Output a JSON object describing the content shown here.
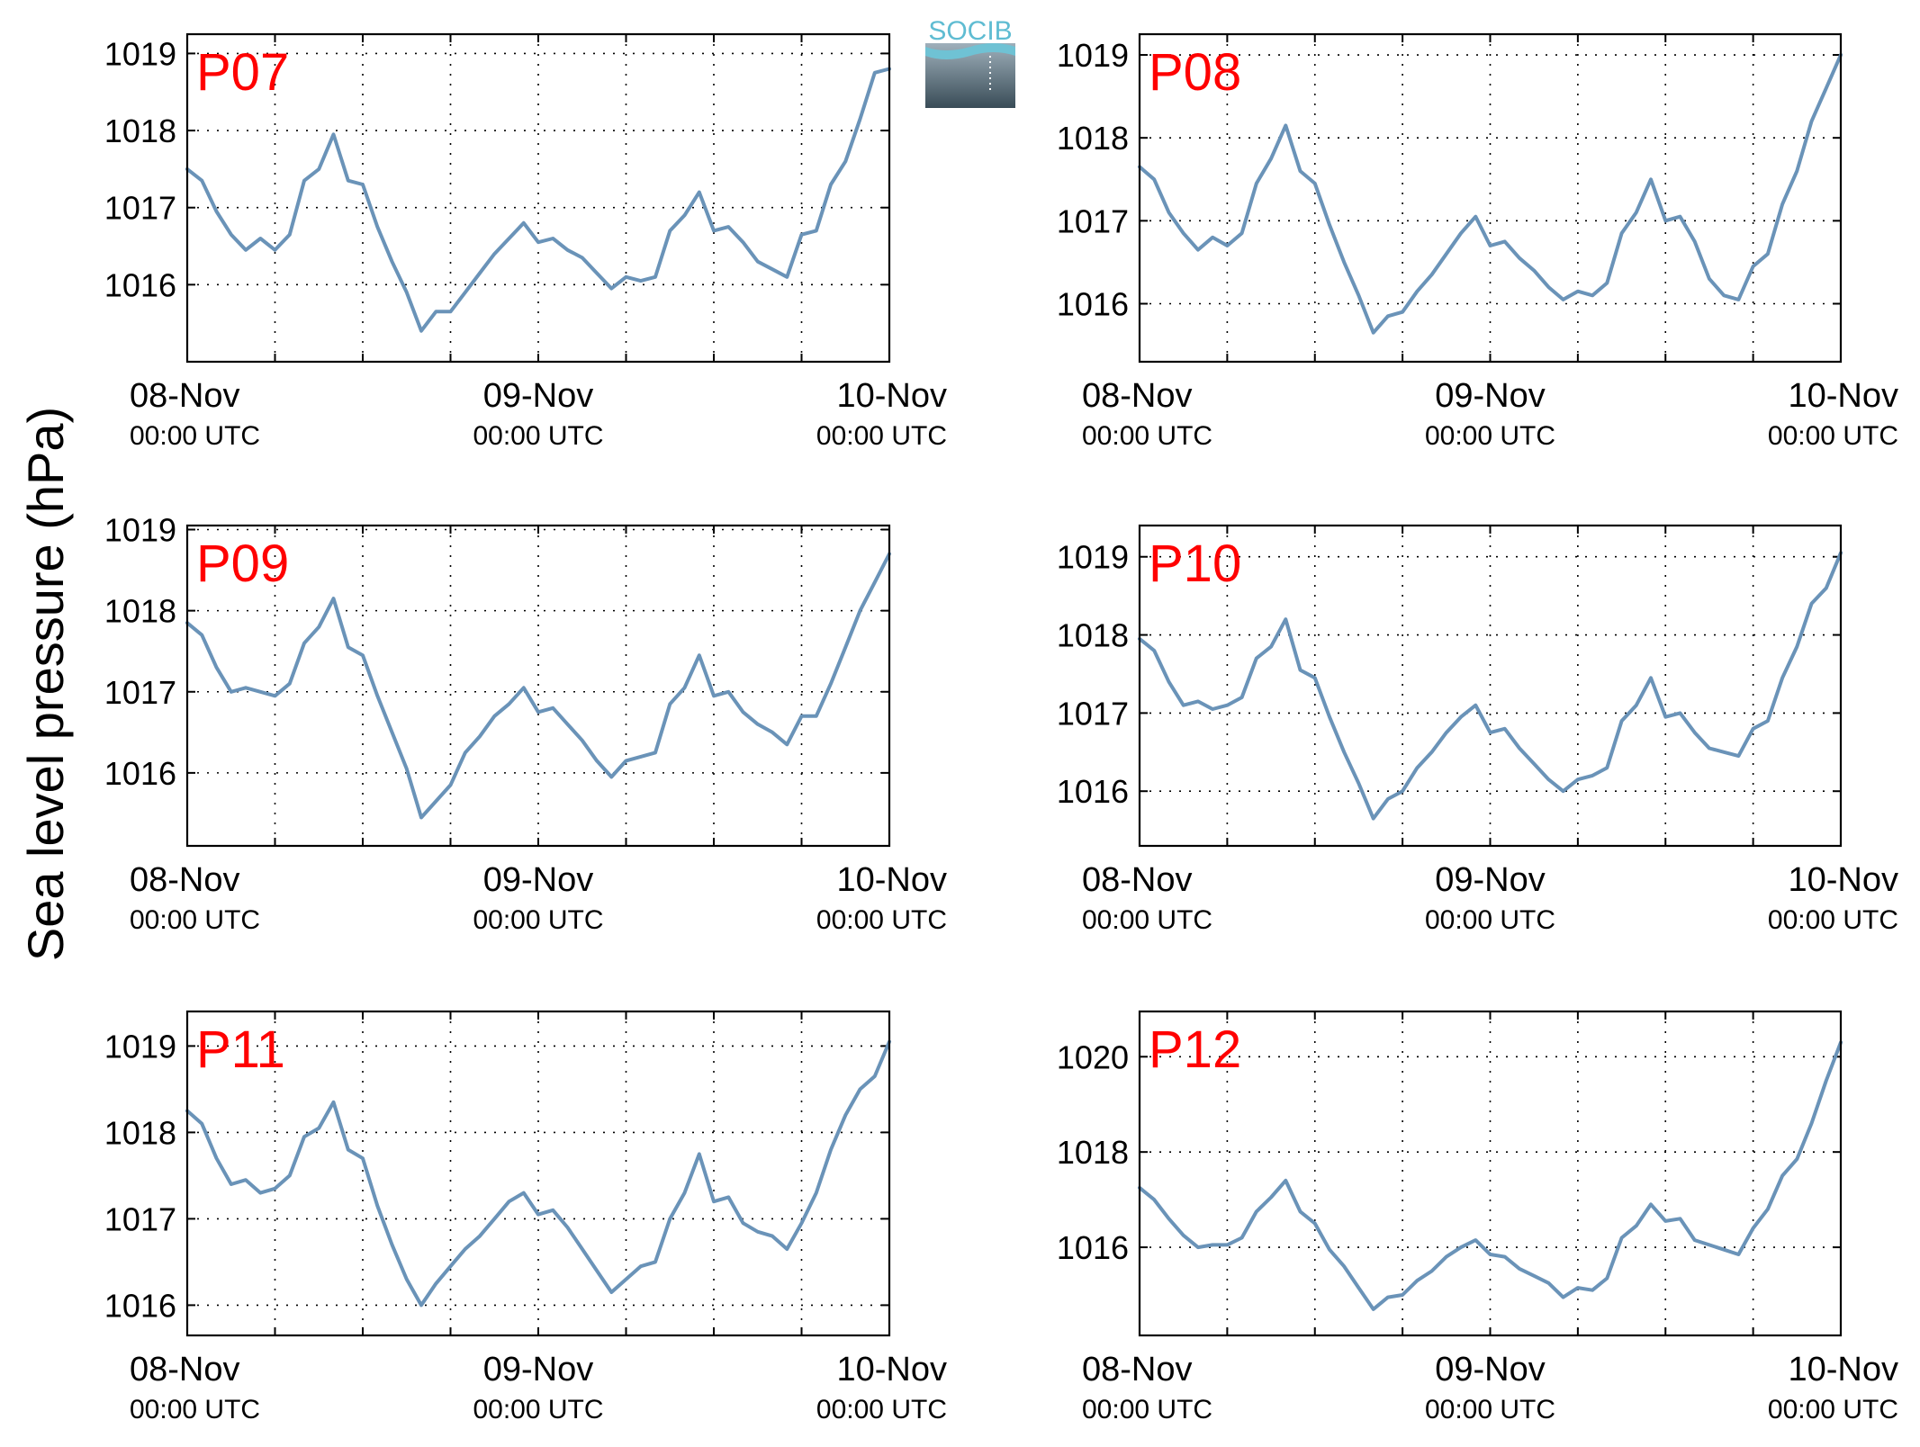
{
  "figure": {
    "ylabel": "Sea level pressure (hPa)",
    "logo_text": "SOCIB",
    "line_color": "#6a93b8",
    "label_color": "#ff0000"
  },
  "chart_data": [
    {
      "type": "line",
      "label": "P07",
      "x_ticks": [
        "08-Nov",
        "09-Nov",
        "10-Nov"
      ],
      "x_subticks": [
        "00:00 UTC",
        "00:00 UTC",
        "00:00 UTC"
      ],
      "xlim_hours": [
        0,
        48
      ],
      "ylim": [
        1015.0,
        1019.25
      ],
      "y_ticks": [
        1016,
        1017,
        1018,
        1019
      ],
      "grid": true,
      "x": [
        0,
        1,
        2,
        3,
        4,
        5,
        6,
        7,
        8,
        9,
        10,
        11,
        12,
        13,
        14,
        15,
        16,
        17,
        18,
        19,
        20,
        21,
        22,
        23,
        24,
        25,
        26,
        27,
        28,
        29,
        30,
        31,
        32,
        33,
        34,
        35,
        36,
        37,
        38,
        39,
        40,
        41,
        42,
        43,
        44,
        45,
        46,
        47,
        48
      ],
      "y": [
        1017.5,
        1017.35,
        1016.95,
        1016.65,
        1016.45,
        1016.6,
        1016.45,
        1016.65,
        1017.35,
        1017.5,
        1017.95,
        1017.35,
        1017.3,
        1016.75,
        1016.3,
        1015.9,
        1015.4,
        1015.65,
        1015.65,
        1015.9,
        1016.15,
        1016.4,
        1016.6,
        1016.8,
        1016.55,
        1016.6,
        1016.45,
        1016.35,
        1016.15,
        1015.95,
        1016.1,
        1016.05,
        1016.1,
        1016.7,
        1016.9,
        1017.2,
        1016.7,
        1016.75,
        1016.55,
        1016.3,
        1016.2,
        1016.1,
        1016.65,
        1016.7,
        1017.3,
        1017.6,
        1018.15,
        1018.75,
        1018.8
      ]
    },
    {
      "type": "line",
      "label": "P08",
      "x_ticks": [
        "08-Nov",
        "09-Nov",
        "10-Nov"
      ],
      "x_subticks": [
        "00:00 UTC",
        "00:00 UTC",
        "00:00 UTC"
      ],
      "xlim_hours": [
        0,
        48
      ],
      "ylim": [
        1015.3,
        1019.25
      ],
      "y_ticks": [
        1016,
        1017,
        1018,
        1019
      ],
      "grid": true,
      "x": [
        0,
        1,
        2,
        3,
        4,
        5,
        6,
        7,
        8,
        9,
        10,
        11,
        12,
        13,
        14,
        15,
        16,
        17,
        18,
        19,
        20,
        21,
        22,
        23,
        24,
        25,
        26,
        27,
        28,
        29,
        30,
        31,
        32,
        33,
        34,
        35,
        36,
        37,
        38,
        39,
        40,
        41,
        42,
        43,
        44,
        45,
        46,
        47,
        48
      ],
      "y": [
        1017.65,
        1017.5,
        1017.1,
        1016.85,
        1016.65,
        1016.8,
        1016.7,
        1016.85,
        1017.45,
        1017.75,
        1018.15,
        1017.6,
        1017.45,
        1016.95,
        1016.5,
        1016.1,
        1015.65,
        1015.85,
        1015.9,
        1016.15,
        1016.35,
        1016.6,
        1016.85,
        1017.05,
        1016.7,
        1016.75,
        1016.55,
        1016.4,
        1016.2,
        1016.05,
        1016.15,
        1016.1,
        1016.25,
        1016.85,
        1017.1,
        1017.5,
        1017.0,
        1017.05,
        1016.75,
        1016.3,
        1016.1,
        1016.05,
        1016.45,
        1016.6,
        1017.2,
        1017.6,
        1018.2,
        1018.6,
        1019.0
      ]
    },
    {
      "type": "line",
      "label": "P09",
      "x_ticks": [
        "08-Nov",
        "09-Nov",
        "10-Nov"
      ],
      "x_subticks": [
        "00:00 UTC",
        "00:00 UTC",
        "00:00 UTC"
      ],
      "xlim_hours": [
        0,
        48
      ],
      "ylim": [
        1015.1,
        1019.05
      ],
      "y_ticks": [
        1016,
        1017,
        1018,
        1019
      ],
      "grid": true,
      "x": [
        0,
        1,
        2,
        3,
        4,
        5,
        6,
        7,
        8,
        9,
        10,
        11,
        12,
        13,
        14,
        15,
        16,
        17,
        18,
        19,
        20,
        21,
        22,
        23,
        24,
        25,
        26,
        27,
        28,
        29,
        30,
        31,
        32,
        33,
        34,
        35,
        36,
        37,
        38,
        39,
        40,
        41,
        42,
        43,
        44,
        45,
        46,
        47,
        48
      ],
      "y": [
        1017.85,
        1017.7,
        1017.3,
        1017.0,
        1017.05,
        1017.0,
        1016.95,
        1017.1,
        1017.6,
        1017.8,
        1018.15,
        1017.55,
        1017.45,
        1016.95,
        1016.5,
        1016.05,
        1015.45,
        1015.65,
        1015.85,
        1016.25,
        1016.45,
        1016.7,
        1016.85,
        1017.05,
        1016.75,
        1016.8,
        1016.6,
        1016.4,
        1016.15,
        1015.95,
        1016.15,
        1016.2,
        1016.25,
        1016.85,
        1017.05,
        1017.45,
        1016.95,
        1017.0,
        1016.75,
        1016.6,
        1016.5,
        1016.35,
        1016.7,
        1016.7,
        1017.1,
        1017.55,
        1018.0,
        1018.35,
        1018.7
      ]
    },
    {
      "type": "line",
      "label": "P10",
      "x_ticks": [
        "08-Nov",
        "09-Nov",
        "10-Nov"
      ],
      "x_subticks": [
        "00:00 UTC",
        "00:00 UTC",
        "00:00 UTC"
      ],
      "xlim_hours": [
        0,
        48
      ],
      "ylim": [
        1015.3,
        1019.4
      ],
      "y_ticks": [
        1016,
        1017,
        1018,
        1019
      ],
      "grid": true,
      "x": [
        0,
        1,
        2,
        3,
        4,
        5,
        6,
        7,
        8,
        9,
        10,
        11,
        12,
        13,
        14,
        15,
        16,
        17,
        18,
        19,
        20,
        21,
        22,
        23,
        24,
        25,
        26,
        27,
        28,
        29,
        30,
        31,
        32,
        33,
        34,
        35,
        36,
        37,
        38,
        39,
        40,
        41,
        42,
        43,
        44,
        45,
        46,
        47,
        48
      ],
      "y": [
        1017.95,
        1017.8,
        1017.4,
        1017.1,
        1017.15,
        1017.05,
        1017.1,
        1017.2,
        1017.7,
        1017.85,
        1018.2,
        1017.55,
        1017.45,
        1016.95,
        1016.5,
        1016.1,
        1015.65,
        1015.9,
        1016.0,
        1016.3,
        1016.5,
        1016.75,
        1016.95,
        1017.1,
        1016.75,
        1016.8,
        1016.55,
        1016.35,
        1016.15,
        1016.0,
        1016.15,
        1016.2,
        1016.3,
        1016.9,
        1017.1,
        1017.45,
        1016.95,
        1017.0,
        1016.75,
        1016.55,
        1016.5,
        1016.45,
        1016.8,
        1016.9,
        1017.45,
        1017.85,
        1018.4,
        1018.6,
        1019.05
      ]
    },
    {
      "type": "line",
      "label": "P11",
      "x_ticks": [
        "08-Nov",
        "09-Nov",
        "10-Nov"
      ],
      "x_subticks": [
        "00:00 UTC",
        "00:00 UTC",
        "00:00 UTC"
      ],
      "xlim_hours": [
        0,
        48
      ],
      "ylim": [
        1015.65,
        1019.4
      ],
      "y_ticks": [
        1016,
        1017,
        1018,
        1019
      ],
      "grid": true,
      "x": [
        0,
        1,
        2,
        3,
        4,
        5,
        6,
        7,
        8,
        9,
        10,
        11,
        12,
        13,
        14,
        15,
        16,
        17,
        18,
        19,
        20,
        21,
        22,
        23,
        24,
        25,
        26,
        27,
        28,
        29,
        30,
        31,
        32,
        33,
        34,
        35,
        36,
        37,
        38,
        39,
        40,
        41,
        42,
        43,
        44,
        45,
        46,
        47,
        48
      ],
      "y": [
        1018.25,
        1018.1,
        1017.7,
        1017.4,
        1017.45,
        1017.3,
        1017.35,
        1017.5,
        1017.95,
        1018.05,
        1018.35,
        1017.8,
        1017.7,
        1017.15,
        1016.7,
        1016.3,
        1016.0,
        1016.25,
        1016.45,
        1016.65,
        1016.8,
        1017.0,
        1017.2,
        1017.3,
        1017.05,
        1017.1,
        1016.9,
        1016.65,
        1016.4,
        1016.15,
        1016.3,
        1016.45,
        1016.5,
        1017.0,
        1017.3,
        1017.75,
        1017.2,
        1017.25,
        1016.95,
        1016.85,
        1016.8,
        1016.65,
        1016.95,
        1017.3,
        1017.8,
        1018.2,
        1018.5,
        1018.65,
        1019.05
      ]
    },
    {
      "type": "line",
      "label": "P12",
      "x_ticks": [
        "08-Nov",
        "09-Nov",
        "10-Nov"
      ],
      "x_subticks": [
        "00:00 UTC",
        "00:00 UTC",
        "00:00 UTC"
      ],
      "xlim_hours": [
        0,
        48
      ],
      "ylim": [
        1014.15,
        1020.95
      ],
      "y_ticks": [
        1016,
        1018,
        1020
      ],
      "grid": true,
      "x": [
        0,
        1,
        2,
        3,
        4,
        5,
        6,
        7,
        8,
        9,
        10,
        11,
        12,
        13,
        14,
        15,
        16,
        17,
        18,
        19,
        20,
        21,
        22,
        23,
        24,
        25,
        26,
        27,
        28,
        29,
        30,
        31,
        32,
        33,
        34,
        35,
        36,
        37,
        38,
        39,
        40,
        41,
        42,
        43,
        44,
        45,
        46,
        47,
        48
      ],
      "y": [
        1017.25,
        1017.0,
        1016.6,
        1016.25,
        1016.0,
        1016.05,
        1016.05,
        1016.2,
        1016.75,
        1017.05,
        1017.4,
        1016.75,
        1016.5,
        1015.95,
        1015.6,
        1015.15,
        1014.7,
        1014.95,
        1015.0,
        1015.3,
        1015.5,
        1015.8,
        1016.0,
        1016.15,
        1015.85,
        1015.8,
        1015.55,
        1015.4,
        1015.25,
        1014.95,
        1015.15,
        1015.1,
        1015.35,
        1016.2,
        1016.45,
        1016.9,
        1016.55,
        1016.6,
        1016.15,
        1016.05,
        1015.95,
        1015.85,
        1016.4,
        1016.8,
        1017.5,
        1017.85,
        1018.6,
        1019.5,
        1020.3
      ]
    }
  ]
}
